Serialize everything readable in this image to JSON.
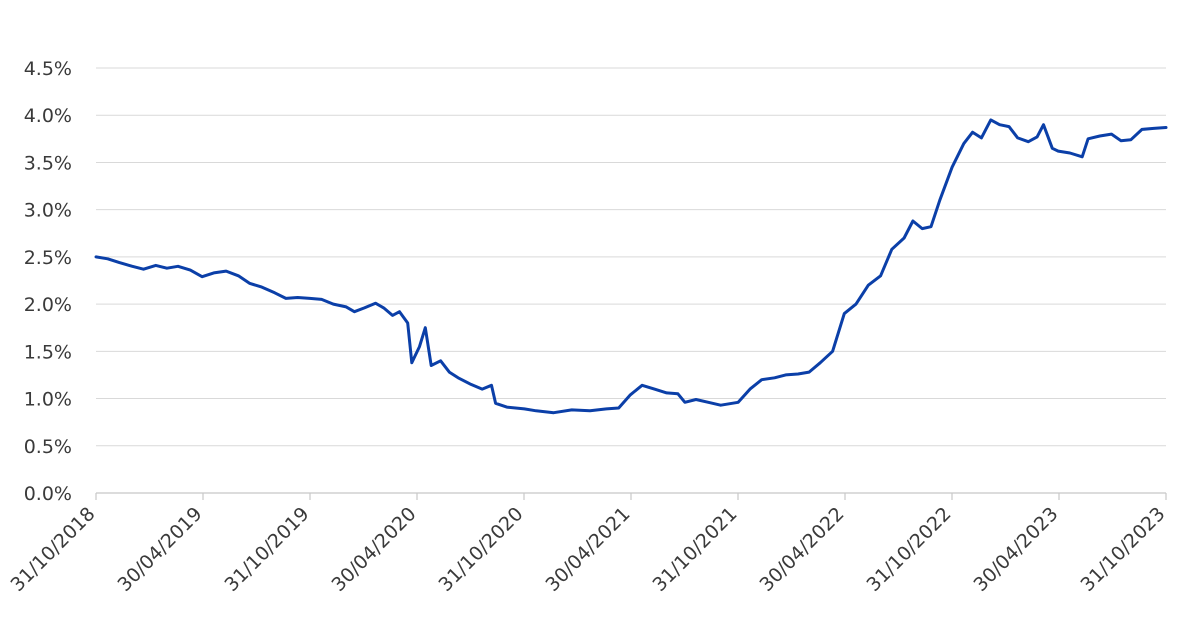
{
  "chart_data": {
    "type": "line",
    "title": "",
    "xlabel": "",
    "ylabel": "",
    "y_tick_labels": [
      "0.0%",
      "0.5%",
      "1.0%",
      "1.5%",
      "2.0%",
      "2.5%",
      "3.0%",
      "3.5%",
      "4.0%",
      "4.5%"
    ],
    "x_tick_labels": [
      "31/10/2018",
      "30/04/2019",
      "31/10/2019",
      "30/04/2020",
      "31/10/2020",
      "30/04/2021",
      "31/10/2021",
      "30/04/2022",
      "31/10/2022",
      "30/04/2023",
      "31/10/2023"
    ],
    "xlim": [
      "2018-10-31",
      "2023-10-31"
    ],
    "ylim": [
      0,
      4.5
    ],
    "grid": "horizontal",
    "legend": "none",
    "series": [
      {
        "color": "#0b3fa8",
        "points": [
          [
            "2018-10-31",
            2.5
          ],
          [
            "2018-11-20",
            2.48
          ],
          [
            "2018-12-10",
            2.44
          ],
          [
            "2019-01-01",
            2.4
          ],
          [
            "2019-01-20",
            2.37
          ],
          [
            "2019-02-10",
            2.41
          ],
          [
            "2019-03-01",
            2.38
          ],
          [
            "2019-03-20",
            2.4
          ],
          [
            "2019-04-10",
            2.36
          ],
          [
            "2019-04-30",
            2.29
          ],
          [
            "2019-05-20",
            2.33
          ],
          [
            "2019-06-10",
            2.35
          ],
          [
            "2019-07-01",
            2.3
          ],
          [
            "2019-07-20",
            2.22
          ],
          [
            "2019-08-10",
            2.18
          ],
          [
            "2019-09-01",
            2.12
          ],
          [
            "2019-09-20",
            2.06
          ],
          [
            "2019-10-10",
            2.07
          ],
          [
            "2019-10-31",
            2.06
          ],
          [
            "2019-11-20",
            2.05
          ],
          [
            "2019-12-10",
            2.0
          ],
          [
            "2020-01-01",
            1.97
          ],
          [
            "2020-01-15",
            1.92
          ],
          [
            "2020-02-01",
            1.96
          ],
          [
            "2020-02-20",
            2.01
          ],
          [
            "2020-03-05",
            1.96
          ],
          [
            "2020-03-20",
            1.88
          ],
          [
            "2020-04-01",
            1.92
          ],
          [
            "2020-04-15",
            1.8
          ],
          [
            "2020-04-22",
            1.38
          ],
          [
            "2020-05-05",
            1.55
          ],
          [
            "2020-05-15",
            1.75
          ],
          [
            "2020-05-25",
            1.35
          ],
          [
            "2020-06-10",
            1.4
          ],
          [
            "2020-06-25",
            1.28
          ],
          [
            "2020-07-10",
            1.22
          ],
          [
            "2020-08-01",
            1.15
          ],
          [
            "2020-08-20",
            1.1
          ],
          [
            "2020-09-05",
            1.14
          ],
          [
            "2020-09-12",
            0.95
          ],
          [
            "2020-10-01",
            0.91
          ],
          [
            "2020-10-31",
            0.89
          ],
          [
            "2020-11-20",
            0.87
          ],
          [
            "2020-12-20",
            0.85
          ],
          [
            "2021-01-20",
            0.88
          ],
          [
            "2021-02-20",
            0.87
          ],
          [
            "2021-03-20",
            0.89
          ],
          [
            "2021-04-10",
            0.9
          ],
          [
            "2021-04-30",
            1.04
          ],
          [
            "2021-05-20",
            1.14
          ],
          [
            "2021-06-10",
            1.1
          ],
          [
            "2021-07-01",
            1.06
          ],
          [
            "2021-07-20",
            1.05
          ],
          [
            "2021-08-01",
            0.96
          ],
          [
            "2021-08-20",
            0.99
          ],
          [
            "2021-09-10",
            0.96
          ],
          [
            "2021-10-01",
            0.93
          ],
          [
            "2021-10-31",
            0.96
          ],
          [
            "2021-11-20",
            1.1
          ],
          [
            "2021-12-10",
            1.2
          ],
          [
            "2022-01-01",
            1.22
          ],
          [
            "2022-01-20",
            1.25
          ],
          [
            "2022-02-10",
            1.26
          ],
          [
            "2022-03-01",
            1.28
          ],
          [
            "2022-03-20",
            1.38
          ],
          [
            "2022-04-10",
            1.5
          ],
          [
            "2022-04-30",
            1.9
          ],
          [
            "2022-05-20",
            2.0
          ],
          [
            "2022-06-10",
            2.2
          ],
          [
            "2022-07-01",
            2.3
          ],
          [
            "2022-07-20",
            2.58
          ],
          [
            "2022-08-10",
            2.7
          ],
          [
            "2022-08-25",
            2.88
          ],
          [
            "2022-09-10",
            2.8
          ],
          [
            "2022-09-25",
            2.82
          ],
          [
            "2022-10-10",
            3.1
          ],
          [
            "2022-10-31",
            3.45
          ],
          [
            "2022-11-20",
            3.7
          ],
          [
            "2022-12-05",
            3.82
          ],
          [
            "2022-12-20",
            3.76
          ],
          [
            "2023-01-05",
            3.95
          ],
          [
            "2023-01-20",
            3.9
          ],
          [
            "2023-02-05",
            3.88
          ],
          [
            "2023-02-20",
            3.76
          ],
          [
            "2023-03-10",
            3.72
          ],
          [
            "2023-03-25",
            3.77
          ],
          [
            "2023-04-05",
            3.9
          ],
          [
            "2023-04-20",
            3.65
          ],
          [
            "2023-04-30",
            3.62
          ],
          [
            "2023-05-20",
            3.6
          ],
          [
            "2023-06-10",
            3.56
          ],
          [
            "2023-06-20",
            3.75
          ],
          [
            "2023-07-10",
            3.78
          ],
          [
            "2023-07-30",
            3.8
          ],
          [
            "2023-08-15",
            3.73
          ],
          [
            "2023-09-01",
            3.74
          ],
          [
            "2023-09-20",
            3.85
          ],
          [
            "2023-10-10",
            3.86
          ],
          [
            "2023-10-31",
            3.87
          ]
        ]
      }
    ]
  }
}
